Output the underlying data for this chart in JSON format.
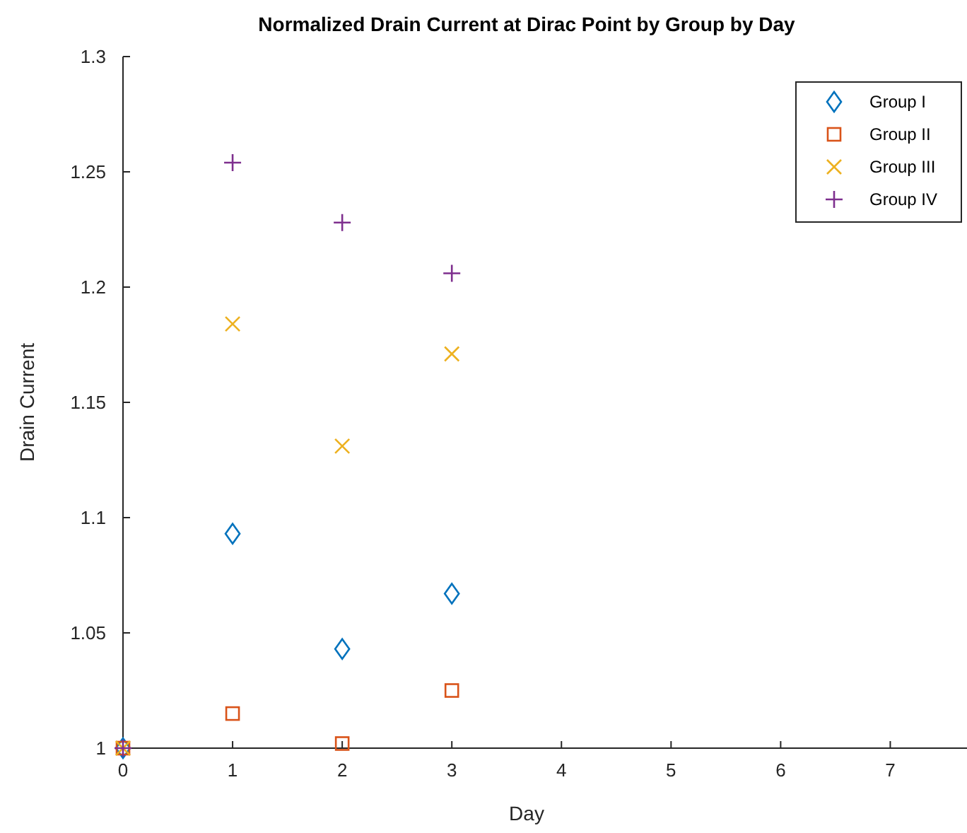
{
  "chart_data": {
    "type": "scatter",
    "title": "Normalized Drain Current at Dirac Point by Group by Day",
    "xlabel": "Day",
    "ylabel": "Drain Current",
    "x": [
      0,
      1,
      2,
      3
    ],
    "series": [
      {
        "name": "Group I",
        "color": "#0072bd",
        "marker": "diamond",
        "values": [
          1.0,
          1.093,
          1.043,
          1.067
        ]
      },
      {
        "name": "Group II",
        "color": "#d95319",
        "marker": "square",
        "values": [
          1.0,
          1.015,
          1.002,
          1.025
        ]
      },
      {
        "name": "Group III",
        "color": "#edb120",
        "marker": "x",
        "values": [
          1.0,
          1.184,
          1.131,
          1.171
        ]
      },
      {
        "name": "Group IV",
        "color": "#7e2f8e",
        "marker": "cross",
        "values": [
          1.0,
          1.254,
          1.228,
          1.206
        ]
      }
    ],
    "xlim": [
      0,
      7.7
    ],
    "xticks": [
      0,
      1,
      2,
      3,
      4,
      5,
      6,
      7
    ],
    "ylim": [
      1,
      1.3
    ],
    "yticks": [
      1,
      1.05,
      1.1,
      1.15,
      1.2,
      1.25,
      1.3
    ],
    "grid": false,
    "legend": "top right"
  }
}
